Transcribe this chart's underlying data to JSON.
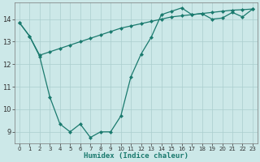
{
  "line1_x": [
    0,
    1,
    2,
    3,
    4,
    5,
    6,
    7,
    8,
    9,
    10,
    11,
    12,
    13,
    14,
    15,
    16,
    17,
    18,
    19,
    20,
    21,
    22,
    23
  ],
  "line1_y": [
    13.85,
    13.25,
    12.35,
    10.55,
    9.35,
    9.0,
    9.35,
    8.75,
    9.0,
    9.0,
    9.7,
    11.45,
    12.45,
    13.2,
    14.2,
    14.35,
    14.5,
    14.2,
    14.25,
    14.0,
    14.05,
    14.3,
    14.1,
    14.45
  ],
  "line2_x": [
    0,
    1,
    2,
    3,
    4,
    5,
    6,
    7,
    8,
    9,
    10,
    11,
    12,
    13,
    14,
    15,
    16,
    17,
    18,
    19,
    20,
    21,
    22,
    23
  ],
  "line2_y": [
    13.85,
    13.25,
    12.4,
    12.55,
    12.7,
    12.85,
    13.0,
    13.15,
    13.3,
    13.45,
    13.6,
    13.7,
    13.8,
    13.9,
    14.0,
    14.1,
    14.15,
    14.2,
    14.25,
    14.3,
    14.35,
    14.4,
    14.42,
    14.45
  ],
  "line_color": "#1a7a6e",
  "bg_color": "#cce8e8",
  "grid_color": "#aacece",
  "xlabel": "Humidex (Indice chaleur)",
  "xlim": [
    -0.5,
    23.5
  ],
  "ylim": [
    8.5,
    14.75
  ],
  "yticks": [
    9,
    10,
    11,
    12,
    13,
    14
  ],
  "xticks": [
    0,
    1,
    2,
    3,
    4,
    5,
    6,
    7,
    8,
    9,
    10,
    11,
    12,
    13,
    14,
    15,
    16,
    17,
    18,
    19,
    20,
    21,
    22,
    23
  ],
  "marker": "D",
  "markersize": 2.5,
  "linewidth": 0.9
}
